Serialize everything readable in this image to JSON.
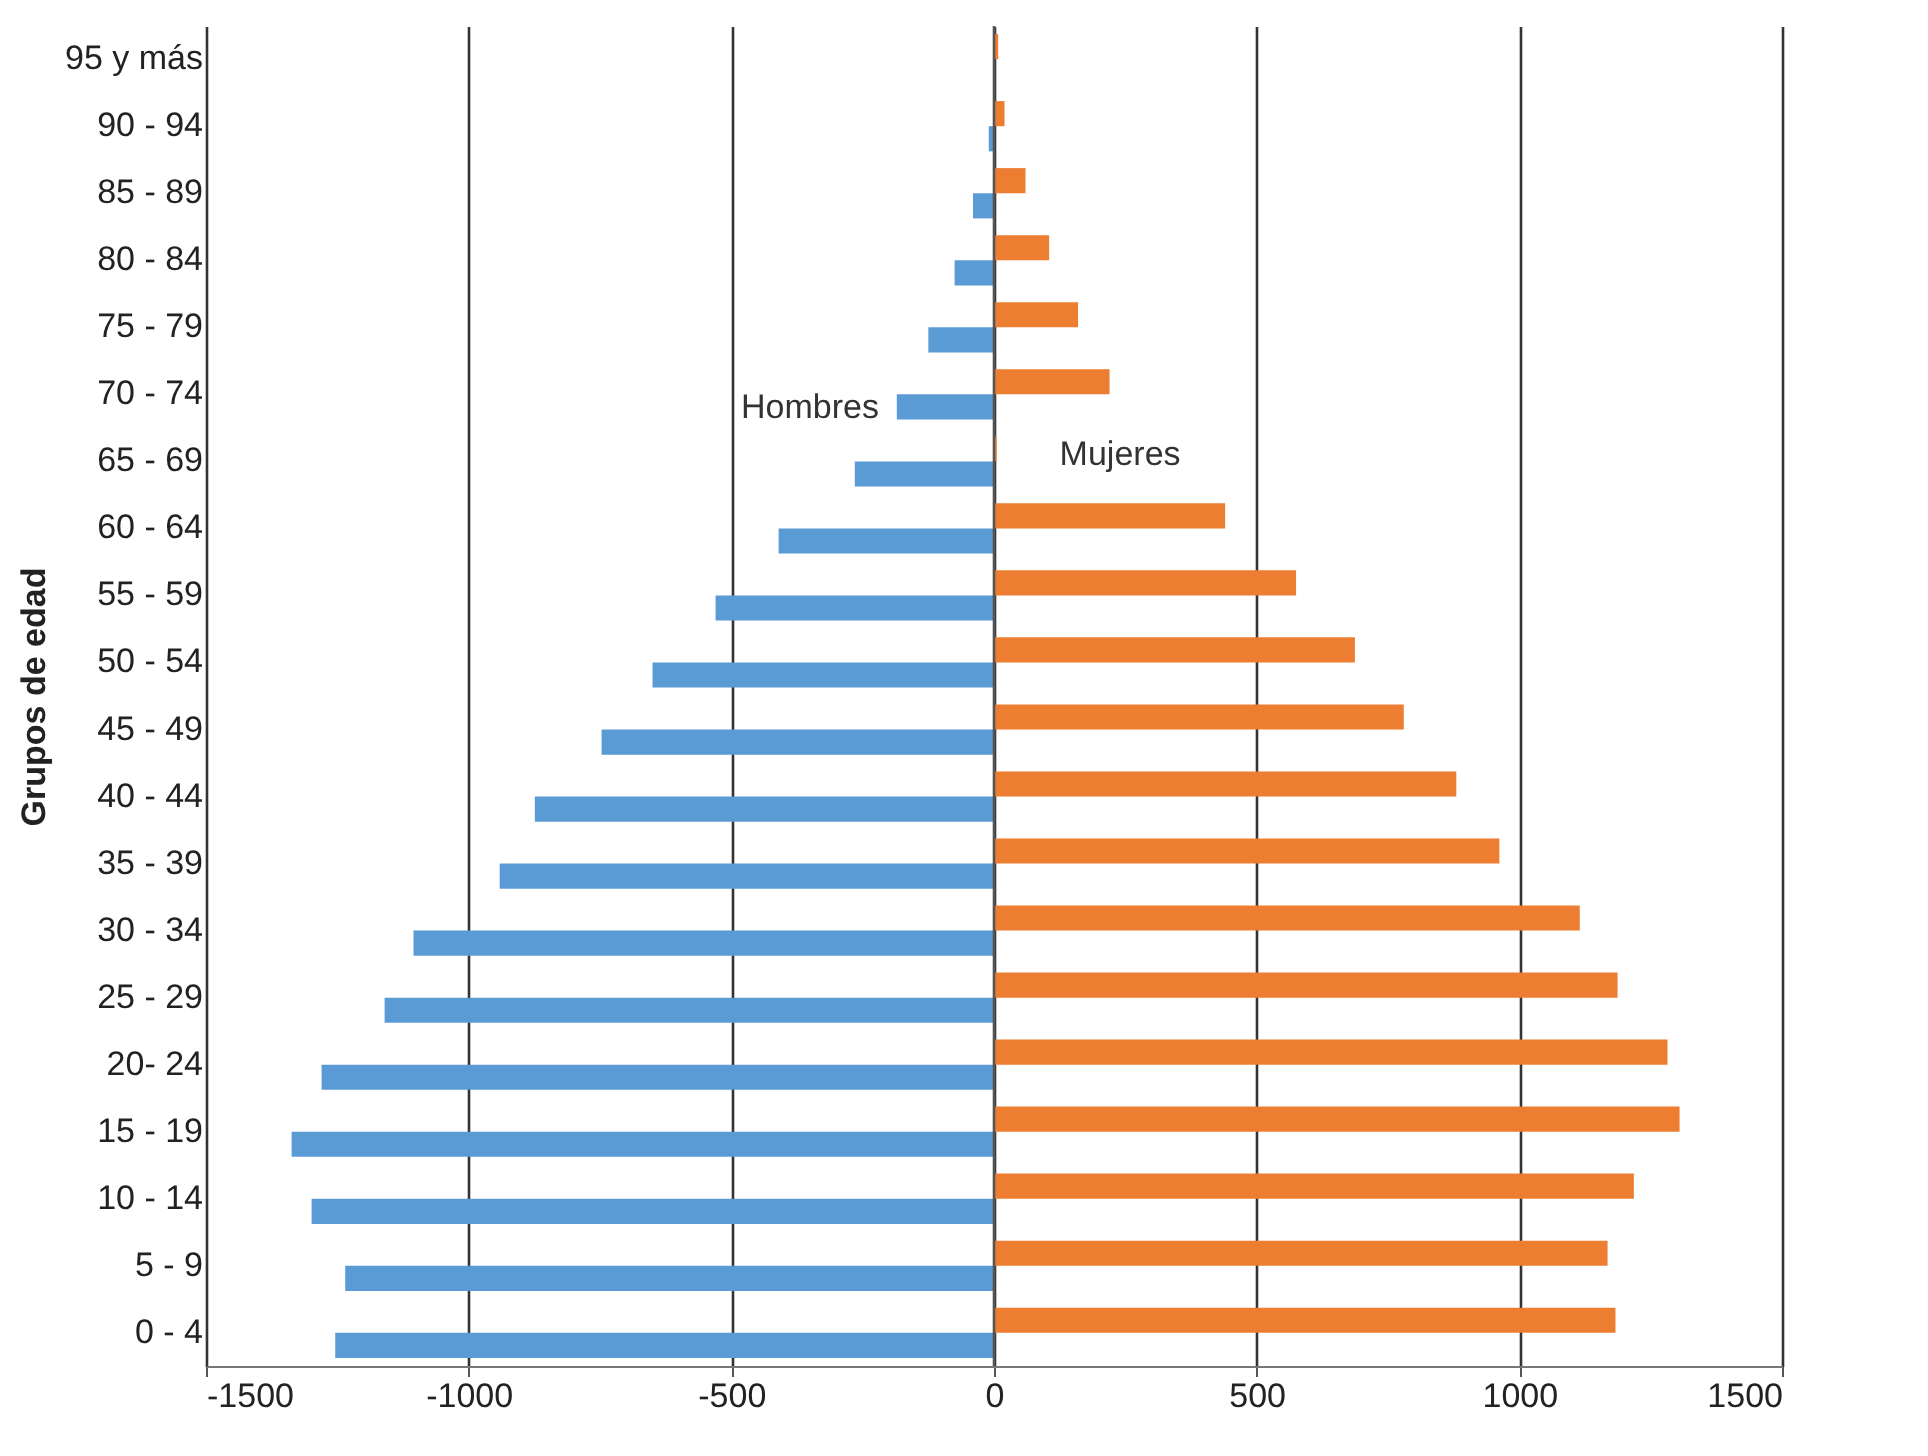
{
  "chart_data": {
    "type": "bar",
    "orientation": "horizontal",
    "ylabel": "Grupos de edad",
    "categories": [
      "95 y más",
      "90 - 94",
      "85 - 89",
      "80 - 84",
      "75 - 79",
      "70 - 74",
      "65 - 69",
      "60 - 64",
      "55 - 59",
      "50 - 54",
      "45 - 49",
      "40 - 44",
      "35 - 39",
      "30 - 34",
      "25 - 29",
      "20- 24",
      "15 - 19",
      "10 - 14",
      "5 - 9",
      "0 - 4"
    ],
    "series": [
      {
        "name": "Hombres",
        "color": "#5b9bd5",
        "values": [
          0,
          -10,
          -40,
          -75,
          -125,
          -185,
          -265,
          -410,
          -530,
          -650,
          -747,
          -874,
          -941,
          -1105,
          -1160,
          -1280,
          -1337,
          -1299,
          -1235,
          -1254
        ]
      },
      {
        "name": "Mujeres",
        "color": "#ed7d31",
        "values": [
          8,
          20,
          60,
          105,
          160,
          220,
          5,
          440,
          575,
          687,
          780,
          880,
          962,
          1115,
          1187,
          1282,
          1305,
          1218,
          1168,
          1183
        ]
      }
    ],
    "xlim": [
      -1500,
      1500
    ],
    "xticks": [
      -1500,
      -1000,
      -500,
      0,
      500,
      1000,
      1500
    ],
    "grid": "x",
    "legend": false
  }
}
